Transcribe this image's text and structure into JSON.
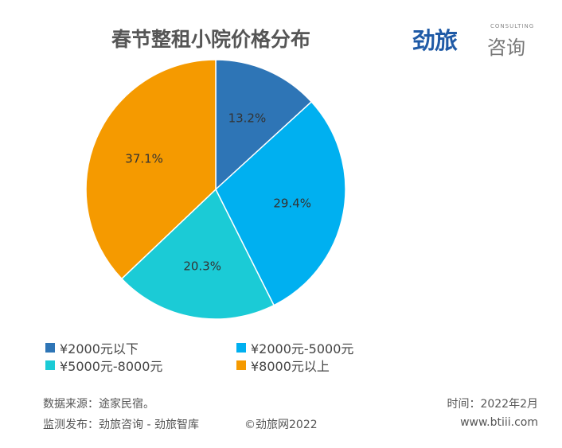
{
  "logo": {
    "text": "劲旅咨询",
    "en": "CONSULTING"
  },
  "chart_data": {
    "type": "pie",
    "title": "春节整租小院价格分布",
    "categories": [
      "¥2000元以下",
      "¥2000元-5000元",
      "¥5000元-8000元",
      "¥8000元以上"
    ],
    "values": [
      13.2,
      29.4,
      20.3,
      37.1
    ],
    "labels": [
      "13.2%",
      "29.4%",
      "20.3%",
      "37.1%"
    ],
    "colors": [
      "#2e75b6",
      "#00b0f0",
      "#1bcbd6",
      "#f59a00"
    ],
    "start": "12 o'clock, clockwise",
    "legend_position": "bottom"
  },
  "footer": {
    "source": "数据来源：途家民宿。",
    "publisher": "监测发布：劲旅咨询 - 劲旅智库",
    "copyright": "©劲旅网2022",
    "time": "时间：2022年2月",
    "website": "www.btiii.com"
  }
}
